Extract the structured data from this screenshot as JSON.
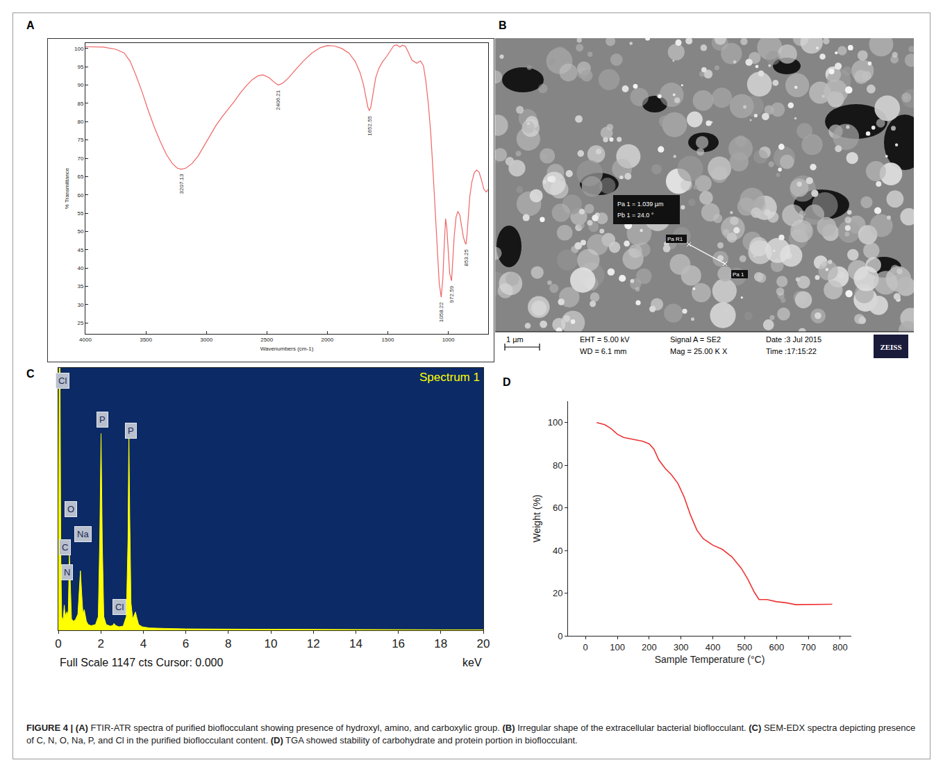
{
  "chart_data": [
    {
      "panel": "A",
      "type": "line",
      "color": "#f06464",
      "x": [
        4000,
        3850,
        3750,
        3680,
        3630,
        3580,
        3530,
        3480,
        3430,
        3380,
        3330,
        3280,
        3240,
        3207.13,
        3170,
        3120,
        3070,
        3020,
        2970,
        2920,
        2870,
        2820,
        2770,
        2720,
        2670,
        2620,
        2570,
        2530,
        2480,
        2440,
        2406.21,
        2370,
        2320,
        2260,
        2200,
        2130,
        2060,
        2000,
        1940,
        1880,
        1820,
        1770,
        1730,
        1700,
        1680,
        1665,
        1652.55,
        1640,
        1625,
        1600,
        1575,
        1545,
        1510,
        1475,
        1450,
        1425,
        1400,
        1380,
        1355,
        1330,
        1300,
        1260,
        1230,
        1205,
        1185,
        1165,
        1145,
        1125,
        1105,
        1090,
        1075,
        1058.22,
        1045,
        1032,
        1022,
        1012,
        1000,
        988,
        972.59,
        962,
        950,
        935,
        920,
        905,
        890,
        875,
        862,
        853.25,
        845,
        835,
        822,
        805,
        785,
        765,
        745,
        725,
        705,
        685,
        670
      ],
      "values": [
        100.5,
        100.4,
        99.8,
        98.8,
        96.5,
        92.5,
        88,
        83,
        78.5,
        74.5,
        71,
        68.5,
        67.3,
        67,
        67.3,
        68.5,
        70.5,
        73.3,
        76.3,
        79,
        81.3,
        83.3,
        85.5,
        87.8,
        89.8,
        91.5,
        92.6,
        92.8,
        92,
        90.8,
        90,
        90.5,
        92,
        94.3,
        96.5,
        98.7,
        100.2,
        100.8,
        100.7,
        100,
        98.7,
        96.5,
        93.5,
        90,
        86.5,
        84,
        83,
        84,
        87,
        92,
        94.5,
        96.3,
        97.8,
        99.6,
        100.8,
        101,
        100.4,
        100.9,
        100.6,
        99,
        96.8,
        96,
        96.6,
        95.3,
        91,
        85,
        77,
        66,
        54,
        44,
        36,
        32,
        37,
        47,
        53.5,
        51,
        44,
        38.5,
        36.5,
        42,
        49,
        54,
        55.5,
        54.5,
        51.5,
        48.5,
        47,
        46.5,
        49,
        54,
        59.5,
        63.5,
        66,
        66.8,
        66.2,
        64,
        61.5,
        60.8,
        61.5
      ],
      "xlim": [
        4000,
        670
      ],
      "xticks": [
        4000,
        3500,
        3000,
        2500,
        2000,
        1500,
        1000
      ],
      "ylim": [
        22,
        101.5
      ],
      "yticks": [
        25,
        30,
        35,
        40,
        45,
        50,
        55,
        60,
        65,
        70,
        75,
        80,
        85,
        90,
        95,
        100
      ],
      "x_label": "Wavenumbers (cm-1)",
      "y_label": "% Transmittance",
      "grid": false,
      "annotations": [
        {
          "x": 3207.13,
          "y": 67,
          "text": "3207.13"
        },
        {
          "x": 2406.21,
          "y": 90,
          "text": "2406.21"
        },
        {
          "x": 1652.55,
          "y": 83,
          "text": "1652.55"
        },
        {
          "x": 1058.22,
          "y": 32,
          "text": "1058.22"
        },
        {
          "x": 972.59,
          "y": 36.5,
          "text": "972.59"
        },
        {
          "x": 853.25,
          "y": 46.5,
          "text": "853.25"
        }
      ]
    },
    {
      "panel": "C",
      "type": "area",
      "title": "Spectrum 1",
      "color": "#ffff00",
      "x": [
        0,
        0.04,
        0.08,
        0.12,
        0.16,
        0.2,
        0.24,
        0.28,
        0.32,
        0.36,
        0.39,
        0.43,
        0.47,
        0.52,
        0.57,
        0.62,
        0.7,
        0.8,
        0.92,
        0.98,
        1.04,
        1.1,
        1.16,
        1.22,
        1.26,
        1.32,
        1.4,
        1.55,
        1.75,
        1.88,
        1.95,
        2.01,
        2.07,
        2.14,
        2.25,
        2.45,
        2.58,
        2.62,
        2.68,
        2.85,
        3.05,
        3.2,
        3.28,
        3.32,
        3.36,
        3.42,
        3.5,
        3.58,
        3.63,
        3.68,
        3.78,
        3.95,
        4.3,
        5,
        6,
        8,
        10,
        12,
        14,
        16,
        18,
        20
      ],
      "values": [
        40,
        1147,
        1147,
        300,
        60,
        40,
        60,
        110,
        60,
        70,
        80,
        60,
        90,
        330,
        150,
        50,
        40,
        45,
        70,
        180,
        260,
        160,
        70,
        90,
        70,
        40,
        25,
        20,
        25,
        60,
        400,
        860,
        380,
        60,
        25,
        18,
        22,
        30,
        22,
        15,
        18,
        60,
        400,
        880,
        500,
        120,
        50,
        70,
        80,
        60,
        25,
        15,
        10,
        8,
        6,
        5,
        4,
        3,
        3,
        2,
        2,
        2
      ],
      "xlim": [
        0,
        20
      ],
      "xticks": [
        0,
        2,
        4,
        6,
        8,
        10,
        12,
        14,
        16,
        18,
        20
      ],
      "ylim": [
        0,
        1147
      ],
      "tick_labels": "x",
      "grid": false,
      "x_label": "keV",
      "footer": "Full Scale 1147 cts Cursor: 0.000",
      "annotations": [
        {
          "x": 0.19,
          "y": 1092,
          "text": "Cl"
        },
        {
          "x": 2.08,
          "y": 920,
          "text": "P"
        },
        {
          "x": 3.4,
          "y": 872,
          "text": "P"
        },
        {
          "x": 0.58,
          "y": 529,
          "text": "O"
        },
        {
          "x": 1.15,
          "y": 419,
          "text": "Na"
        },
        {
          "x": 0.32,
          "y": 364,
          "text": "C"
        },
        {
          "x": 0.42,
          "y": 254,
          "text": "N"
        },
        {
          "x": 2.88,
          "y": 101,
          "text": "Cl"
        }
      ]
    },
    {
      "panel": "D",
      "type": "line",
      "color": "#ee3333",
      "x": [
        35,
        60,
        80,
        100,
        120,
        150,
        180,
        200,
        215,
        230,
        250,
        270,
        290,
        310,
        330,
        350,
        370,
        400,
        430,
        460,
        490,
        510,
        530,
        545,
        570,
        600,
        630,
        660,
        700,
        740,
        775
      ],
      "values": [
        100,
        99,
        97.2,
        94.5,
        93,
        92,
        91.2,
        90,
        87.5,
        82.5,
        78.5,
        75.5,
        71.5,
        65,
        56.5,
        49.5,
        45.5,
        42.5,
        40.5,
        37,
        31.5,
        26.5,
        20.5,
        17,
        17,
        16,
        15.5,
        14.6,
        14.7,
        14.8,
        14.8
      ],
      "xlim": [
        -55,
        835
      ],
      "xticks": [
        0,
        100,
        200,
        300,
        400,
        500,
        600,
        700,
        800
      ],
      "ylim": [
        0,
        110
      ],
      "yticks": [
        0,
        20,
        40,
        60,
        80,
        100
      ],
      "x_label": "Sample Temperature (°C)",
      "y_label": "Weight (%)",
      "grid": false
    }
  ],
  "image_panel": {
    "panel": "B",
    "measurement": {
      "lines": [
        "Pa 1 = 1.039 µm",
        "Pb 1 = 24.0 °"
      ],
      "start_label": "Pa R1",
      "end_label": "Pa 1"
    },
    "scale_bar": "1 µm",
    "info_columns": [
      [
        "EHT = 5.00 kV",
        "WD = 6.1 mm"
      ],
      [
        "Signal A = SE2",
        "Mag = 25.00 K X"
      ],
      [
        "Date :3 Jul 2015",
        "Time :17:15:22"
      ]
    ],
    "logo": "ZEISS"
  },
  "caption": {
    "label": "FIGURE 4 |",
    "items": [
      {
        "tag": "(A)",
        "text": "FTIR-ATR spectra of purified bioflocculant showing presence of hydroxyl, amino, and carboxylic group."
      },
      {
        "tag": "(B)",
        "text": "Irregular shape of the extracellular bacterial bioflocculant."
      },
      {
        "tag": "(C)",
        "text": "SEM-EDX spectra depicting presence of C, N, O, Na, P, and Cl in the purified bioflocculant content."
      },
      {
        "tag": "(D)",
        "text": "TGA showed stability of carbohydrate and protein portion in bioflocculant."
      }
    ]
  }
}
